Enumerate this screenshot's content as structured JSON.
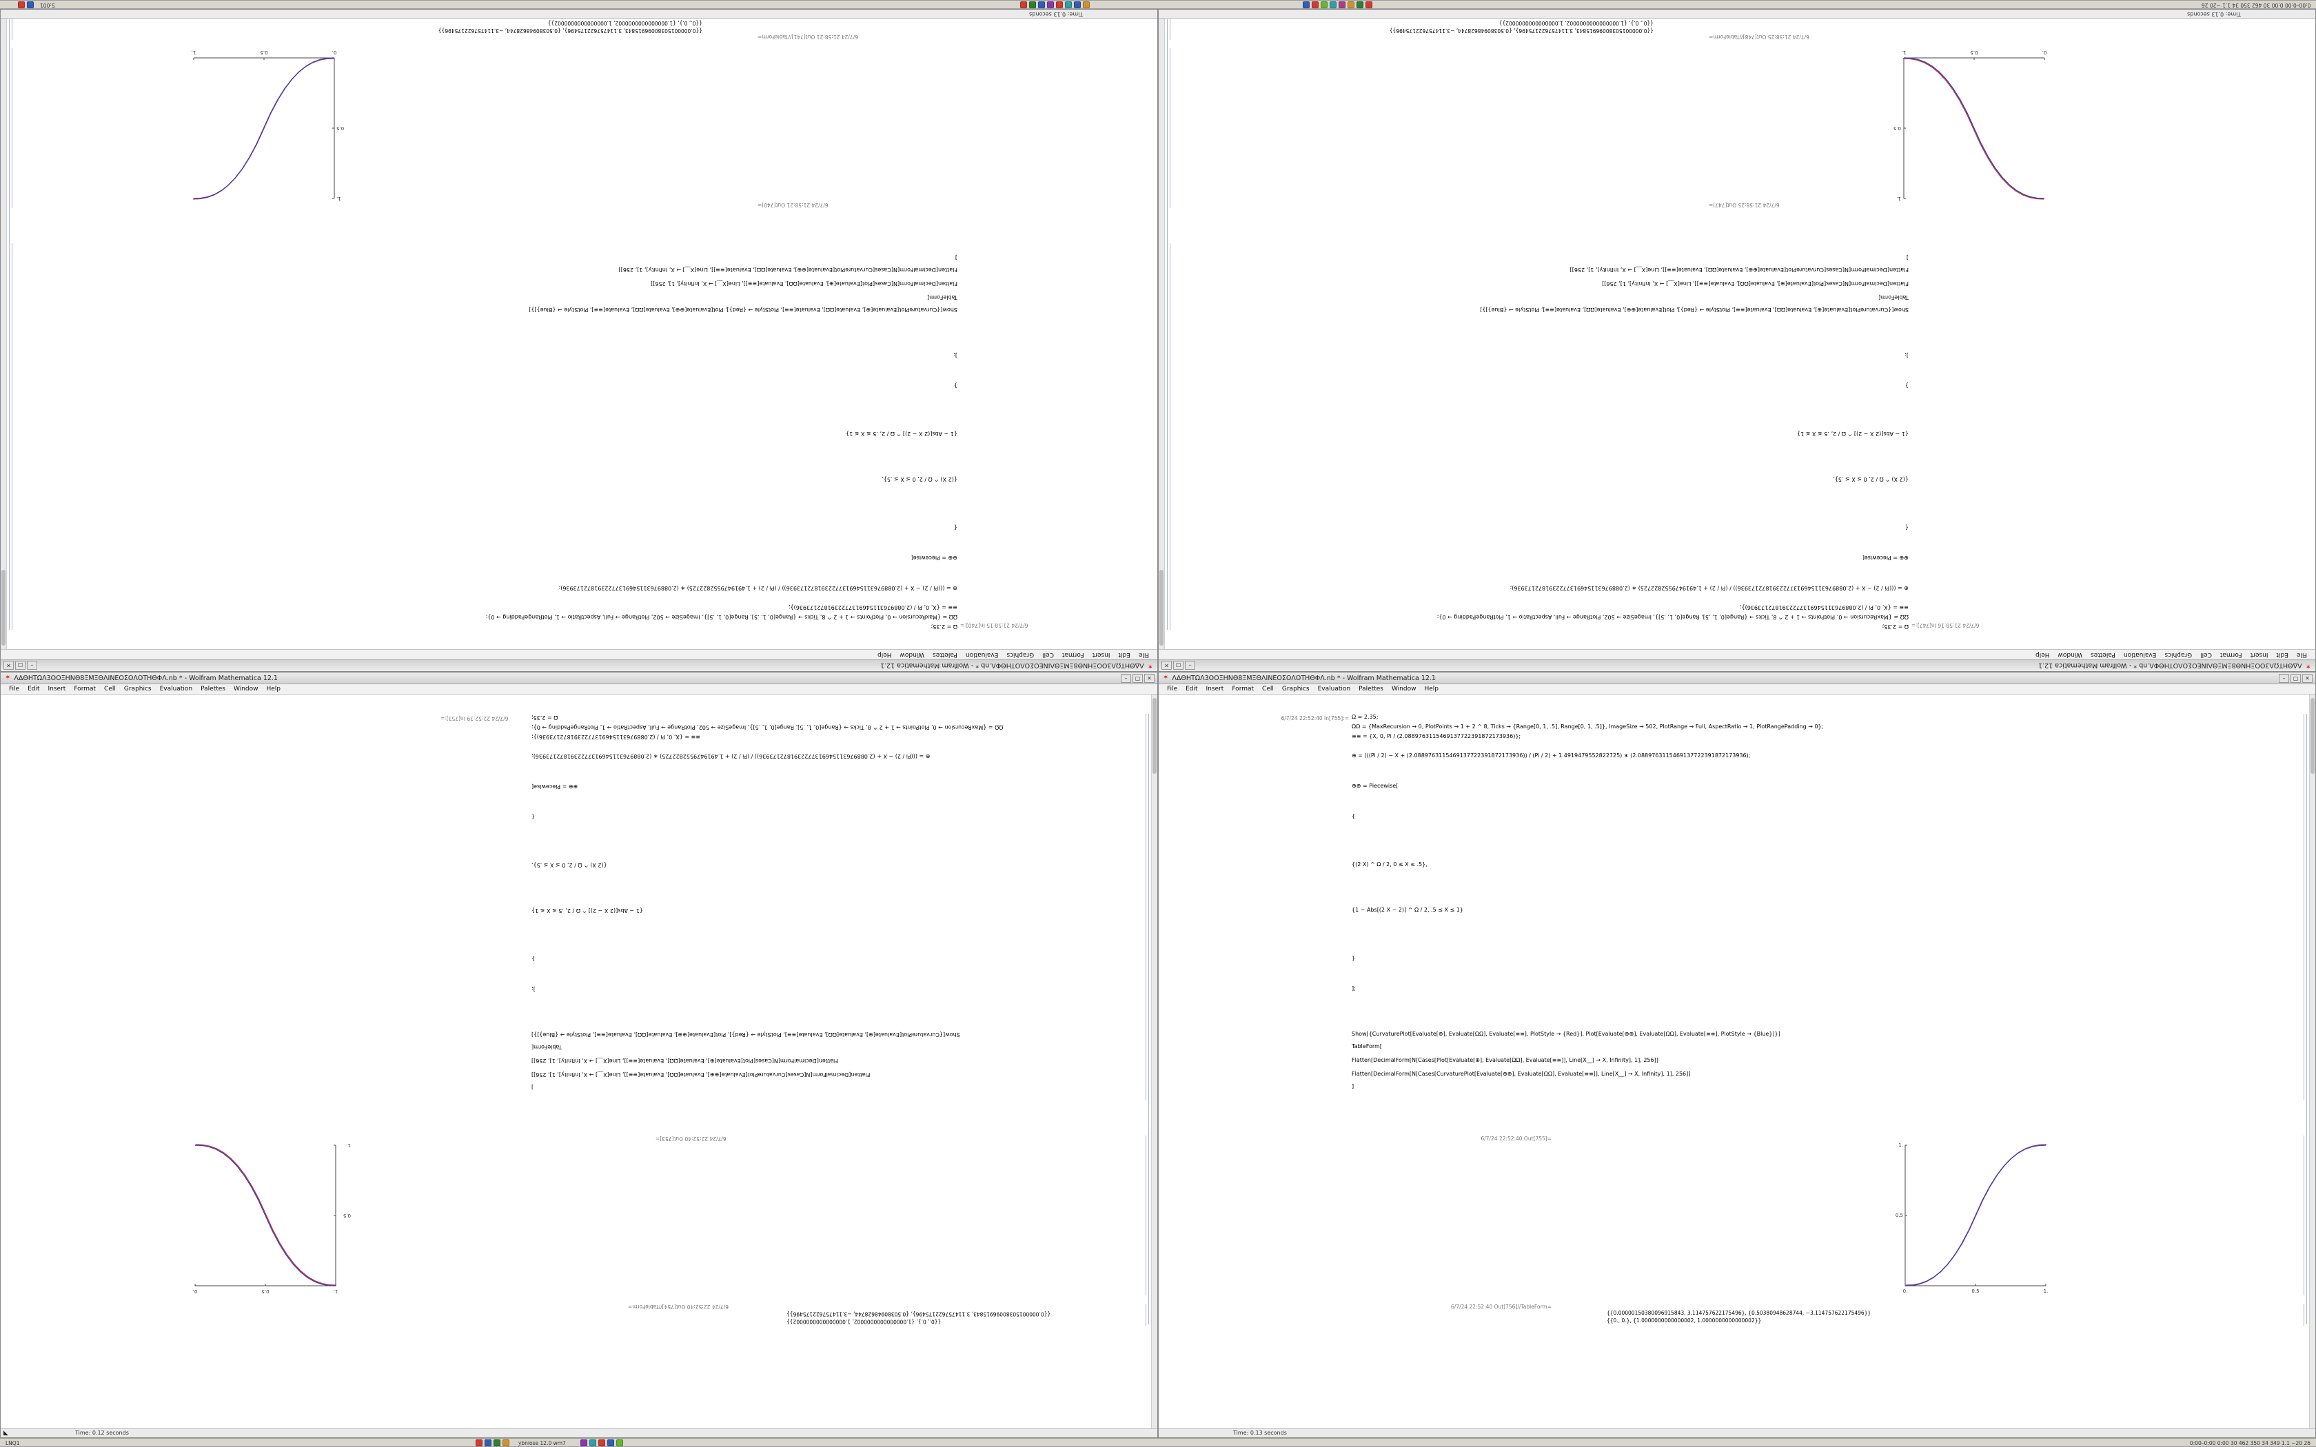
{
  "chrome": {
    "minimize": "–",
    "maximize": "▢",
    "close": "✕",
    "app_icon": "✶"
  },
  "menu": [
    "File",
    "Edit",
    "Insert",
    "Format",
    "Cell",
    "Graphics",
    "Evaluation",
    "Palettes",
    "Window",
    "Help"
  ],
  "shared": {
    "code_lines": [
      "Ω = 2.35;",
      "ΩΩ = {MaxRecursion → 0, PlotPoints → 1 + 2 ^ 8, Ticks → {Range[0, 1, .5], Range[0, 1, .5]}, ImageSize → 502, PlotRange → Full, AspectRatio → 1, PlotRangePadding → 0};",
      "≡≡ = {X, 0, Pi / (2.0889763115469137722391872173936)};",
      "⊕ = (((Pi / 2) − X + (2.0889763115469137722391872173936)) / (Pi / 2) + 1.4919479552822725) ∗ (2.0889763115469137722391872173936);",
      "⊕⊕ = Piecewise[",
      "{",
      "{(2 X) ^ Ω / 2, 0 ≤ X ≤ .5},",
      "{1 − Abs[(2 X − 2)] ^ Ω / 2, .5 ≤ X ≤ 1}",
      "}",
      "];",
      "Show[{CurvaturePlot[Evaluate[⊕], Evaluate[ΩΩ], Evaluate[≡≡], PlotStyle → {Red}], Plot[Evaluate[⊕⊕], Evaluate[ΩΩ], Evaluate[≡≡], PlotStyle → {Blue}]}]",
      "TableForm[",
      "Flatten[DecimalForm[N[Cases[Plot[Evaluate[⊕], Evaluate[ΩΩ], Evaluate[≡≡]], Line[X__] → X, Infinity], 1], 256]]",
      "Flatten[DecimalForm[N[Cases[CurvaturePlot[Evaluate[⊕⊕], Evaluate[ΩΩ], Evaluate[≡≡]], Line[X__] → X, Infinity], 1], 256]]",
      "]"
    ],
    "table_rows": [
      "{{0.00000150380096915843, 3.114757622175496}, {0.50380948628744, −3.114757622175496}}",
      "{{0., 0.}, {1.0000000000000002, 1.0000000000000002}}"
    ]
  },
  "windows": [
    {
      "id": "top-left",
      "title": "ΛΔΘΗΤΩΛ3ΟΟΞΗΝΘ8ΞΜΞΘΛΙΝΕΟΣΟΛΟΤΗΘΦΛ.nb * - Wolfram Mathematica 12.1",
      "status": "Time: 0.13 seconds",
      "cells": {
        "in_label": "6/7/24 21:58:15 In[740]:=",
        "out_plot_label": "6/7/24 21:58:21 Out[740]=",
        "out_table_label": "6/7/24 21:58:21 Out[741]//TableForm="
      },
      "plot": {
        "chart_index": 0,
        "flip_labels": false
      }
    },
    {
      "id": "top-right",
      "title": "ΛΔΘΗΤΩΛ3ΟΟΞΗΝΘ8ΞΜΞΘΛΙΝΕΟΣΟΛΟΤΗΘΦΛ.nb * - Wolfram Mathematica 12.1",
      "status": "Time: 0.13 seconds",
      "cells": {
        "in_label": "6/7/24 21:58:16 In[747]:=",
        "out_plot_label": "6/7/24 21:58:25 Out[747]=",
        "out_table_label": "6/7/24 21:58:25 Out[748]//TableForm="
      },
      "plot": {
        "chart_index": 1,
        "flip_labels": false
      }
    },
    {
      "id": "bottom-left",
      "title": "ΛΔΘΗΤΩΛ3ΟΟΞΗΝΘ8ΞΜΞΘΛΙΝΕΟΣΟΛΟΤΗΘΦΛ.nb * - Wolfram Mathematica 12.1",
      "status": "Time: 0.12 seconds",
      "grip_icon": "◣",
      "cells": {
        "in_label": "6/7/24 22:52:39 In[753]:=",
        "out_plot_label": "6/7/24 22:52:40 Out[753]=",
        "out_table_label": "6/7/24 22:52:40 Out[754]//TableForm="
      },
      "plot": {
        "chart_index": 2,
        "flip_labels": true
      }
    },
    {
      "id": "bottom-right",
      "title": "ΛΔΘΗΤΩΛ3ΟΟΞΗΝΘ8ΞΜΞΘΛΙΝΕΟΣΟΛΟΤΗΘΦΛ.nb * - Wolfram Mathematica 12.1",
      "status": "Time: 0.13 seconds",
      "cells": {
        "in_label": "6/7/24 22:52:40 In[755]:=",
        "out_plot_label": "6/7/24 22:52:40 Out[755]=",
        "out_table_label": "6/7/24 22:52:40 Out[756]//TableForm="
      },
      "plot": {
        "chart_index": 3,
        "flip_labels": false
      }
    }
  ],
  "taskbar_top": {
    "left_text": "5:001",
    "right_text": "0:00–0:00 0:00 30 462 350 34 1.1 −20 26",
    "left_icons": [
      {
        "color": "#d23b2f"
      },
      {
        "color": "#2f5fb5"
      }
    ],
    "cluster_a": [
      {
        "color": "#d23b2f"
      },
      {
        "color": "#2f8032"
      },
      {
        "color": "#2f5fb5"
      },
      {
        "color": "#8a38b0"
      },
      {
        "color": "#d23b2f"
      },
      {
        "color": "#2fa0a8"
      },
      {
        "color": "#2f5fb5"
      },
      {
        "color": "#d2912f"
      }
    ],
    "cluster_b": [
      {
        "color": "#2f5fb5"
      },
      {
        "color": "#d23b2f"
      },
      {
        "color": "#68b52f"
      },
      {
        "color": "#2fa0a8"
      },
      {
        "color": "#b03b8a"
      },
      {
        "color": "#d2912f"
      },
      {
        "color": "#2f8032"
      },
      {
        "color": "#d23b2f"
      }
    ]
  },
  "taskbar_bottom": {
    "left_text": "LNQ1",
    "app_label": "ybniose 12.0 wm7",
    "right_text": "0:00–0:00 0:00 30 462 350 34 349 1.1 −20 26",
    "cluster_a": [
      {
        "color": "#d23b2f"
      },
      {
        "color": "#2f5fb5"
      },
      {
        "color": "#2f8032"
      },
      {
        "color": "#d2912f"
      }
    ],
    "cluster_b": [
      {
        "color": "#8a38b0"
      },
      {
        "color": "#2fa0a8"
      },
      {
        "color": "#d23b2f"
      },
      {
        "color": "#2f5fb5"
      },
      {
        "color": "#68b52f"
      }
    ]
  },
  "chart_data": [
    {
      "type": "line",
      "title": "Out[740]=",
      "xlabel": "",
      "ylabel": "",
      "xlim": [
        0,
        1
      ],
      "ylim": [
        0,
        1
      ],
      "grid": false,
      "legend": "none",
      "axes_origin": "left-bottom",
      "xtick_values": [
        0,
        0.5,
        1
      ],
      "xticks": [
        "0.",
        "0.5",
        "1."
      ],
      "ytick_values": [
        0.5,
        1
      ],
      "yticks": [
        "0.5",
        "1."
      ],
      "x": [
        0,
        0.05,
        0.1,
        0.15,
        0.2,
        0.25,
        0.3,
        0.35,
        0.4,
        0.45,
        0.5,
        0.55,
        0.6,
        0.65,
        0.7,
        0.75,
        0.8,
        0.85,
        0.9,
        0.95,
        1
      ],
      "y": [
        0,
        0.0022,
        0.0114,
        0.0295,
        0.058,
        0.0981,
        0.1505,
        0.2163,
        0.296,
        0.3903,
        0.5,
        0.6097,
        0.704,
        0.7837,
        0.8495,
        0.9019,
        0.942,
        0.9705,
        0.9886,
        0.9978,
        1
      ],
      "series": [
        {
          "name": "curvature-plot-red",
          "color": "#c23532"
        },
        {
          "name": "plot-blue",
          "color": "#4040bb"
        }
      ]
    },
    {
      "type": "line",
      "title": "Out[747]=",
      "xlabel": "",
      "ylabel": "",
      "xlim": [
        0,
        1
      ],
      "ylim": [
        0,
        1
      ],
      "grid": false,
      "legend": "none",
      "axes_origin": "right-bottom",
      "xtick_values": [
        0,
        0.5,
        1
      ],
      "xticks": [
        "0.",
        "0.5",
        "1."
      ],
      "ytick_values": [
        0.5,
        1
      ],
      "yticks": [
        "0.5",
        "1."
      ],
      "x": [
        0,
        0.05,
        0.1,
        0.15,
        0.2,
        0.25,
        0.3,
        0.35,
        0.4,
        0.45,
        0.5,
        0.55,
        0.6,
        0.65,
        0.7,
        0.75,
        0.8,
        0.85,
        0.9,
        0.95,
        1
      ],
      "y": [
        1,
        0.9978,
        0.9886,
        0.9705,
        0.942,
        0.9019,
        0.8495,
        0.7837,
        0.704,
        0.6097,
        0.5,
        0.3903,
        0.296,
        0.2163,
        0.1505,
        0.0981,
        0.058,
        0.0295,
        0.0114,
        0.0022,
        0
      ],
      "series": [
        {
          "name": "curvature-plot-red",
          "color": "#c23532"
        },
        {
          "name": "plot-blue",
          "color": "#4040bb"
        }
      ]
    },
    {
      "type": "line",
      "title": "Out[753]=",
      "xlabel": "",
      "ylabel": "",
      "xlim": [
        0,
        1
      ],
      "ylim": [
        0,
        1
      ],
      "grid": false,
      "legend": "none",
      "axes_origin": "right-bottom",
      "xtick_values": [
        0,
        0.5,
        1
      ],
      "xticks": [
        "0.",
        "0.5",
        "1."
      ],
      "ytick_values": [
        0.5,
        1
      ],
      "yticks": [
        "0.5",
        "1."
      ],
      "x": [
        0,
        0.05,
        0.1,
        0.15,
        0.2,
        0.25,
        0.3,
        0.35,
        0.4,
        0.45,
        0.5,
        0.55,
        0.6,
        0.65,
        0.7,
        0.75,
        0.8,
        0.85,
        0.9,
        0.95,
        1
      ],
      "y": [
        1,
        0.9978,
        0.9886,
        0.9705,
        0.942,
        0.9019,
        0.8495,
        0.7837,
        0.704,
        0.6097,
        0.5,
        0.3903,
        0.296,
        0.2163,
        0.1505,
        0.0981,
        0.058,
        0.0295,
        0.0114,
        0.0022,
        0
      ],
      "series": [
        {
          "name": "curvature-plot-red",
          "color": "#c23532"
        },
        {
          "name": "plot-blue",
          "color": "#4040bb"
        }
      ]
    },
    {
      "type": "line",
      "title": "Out[755]=",
      "xlabel": "",
      "ylabel": "",
      "xlim": [
        0,
        1
      ],
      "ylim": [
        0,
        1
      ],
      "grid": false,
      "legend": "none",
      "axes_origin": "left-bottom",
      "xtick_values": [
        0,
        0.5,
        1
      ],
      "xticks": [
        "0.",
        "0.5",
        "1."
      ],
      "ytick_values": [
        0.5,
        1
      ],
      "yticks": [
        "0.5",
        "1."
      ],
      "x": [
        0,
        0.05,
        0.1,
        0.15,
        0.2,
        0.25,
        0.3,
        0.35,
        0.4,
        0.45,
        0.5,
        0.55,
        0.6,
        0.65,
        0.7,
        0.75,
        0.8,
        0.85,
        0.9,
        0.95,
        1
      ],
      "y": [
        0,
        0.0022,
        0.0114,
        0.0295,
        0.058,
        0.0981,
        0.1505,
        0.2163,
        0.296,
        0.3903,
        0.5,
        0.6097,
        0.704,
        0.7837,
        0.8495,
        0.9019,
        0.942,
        0.9705,
        0.9886,
        0.9978,
        1
      ],
      "series": [
        {
          "name": "curvature-plot-red",
          "color": "#c23532"
        },
        {
          "name": "plot-blue",
          "color": "#4040bb"
        }
      ]
    }
  ]
}
